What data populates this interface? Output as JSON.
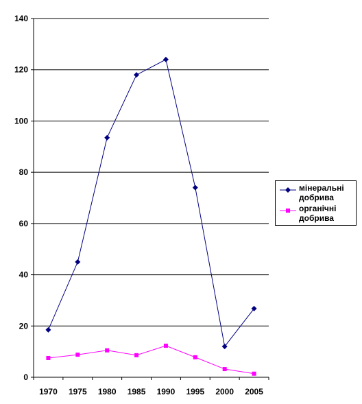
{
  "chart_data": {
    "type": "line",
    "title": "",
    "xlabel": "",
    "ylabel": "",
    "categories": [
      "1970",
      "1975",
      "1980",
      "1985",
      "1990",
      "1995",
      "2000",
      "2005"
    ],
    "ylim": [
      0,
      140
    ],
    "yticks": [
      "0",
      "20",
      "40",
      "60",
      "80",
      "100",
      "120",
      "140"
    ],
    "grid": true,
    "legend_position": "right",
    "series": [
      {
        "name": "мінеральні добрива",
        "values": [
          18.5,
          45,
          93.5,
          118,
          124,
          74,
          12,
          26.8
        ],
        "color": "#000080",
        "marker": "diamond"
      },
      {
        "name": "органічні добрива",
        "values": [
          7.5,
          8.8,
          10.5,
          8.6,
          12.3,
          7.8,
          3.2,
          1.4
        ],
        "color": "#ff00ff",
        "marker": "square"
      }
    ]
  }
}
